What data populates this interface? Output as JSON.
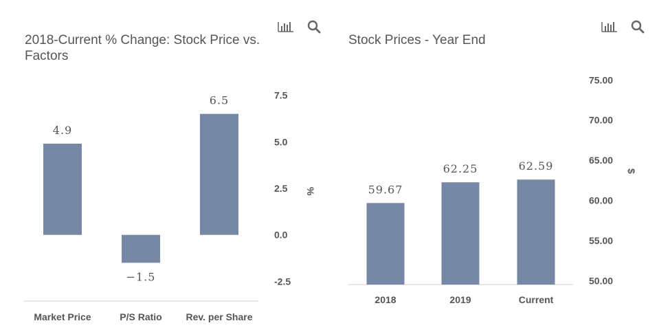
{
  "colors": {
    "bar": "#7688a5",
    "text": "#555555",
    "axis": "#cccccc",
    "icon": "#666666"
  },
  "icons": {
    "chart": "bar-chart-icon",
    "search": "search-icon"
  },
  "chart_data": [
    {
      "type": "bar",
      "title_line1": "2018-Current % Change: Stock Price vs.",
      "title_line2": "Factors",
      "categories": [
        "Market Price",
        "P/S Ratio",
        "Rev. per Share"
      ],
      "values": [
        4.9,
        -1.5,
        6.5
      ],
      "data_labels": [
        "4.9",
        "−1.5",
        "6.5"
      ],
      "ylabel": "%",
      "ylim": [
        -2.5,
        7.5
      ],
      "yticks": [
        "-2.5",
        "0.0",
        "2.5",
        "5.0",
        "7.5"
      ],
      "ytick_values": [
        -2.5,
        0,
        2.5,
        5,
        7.5
      ],
      "grid": false,
      "axis_side": "right"
    },
    {
      "type": "bar",
      "title": "Stock Prices - Year End",
      "categories": [
        "2018",
        "2019",
        "Current"
      ],
      "values": [
        59.67,
        62.25,
        62.59
      ],
      "data_labels": [
        "59.67",
        "62.25",
        "62.59"
      ],
      "ylabel": "$",
      "ylim": [
        47.5,
        77.5
      ],
      "yticks": [
        "50.00",
        "55.00",
        "60.00",
        "65.00",
        "70.00",
        "75.00"
      ],
      "ytick_values": [
        50,
        55,
        60,
        65,
        70,
        75
      ],
      "grid": false,
      "axis_side": "right"
    }
  ]
}
